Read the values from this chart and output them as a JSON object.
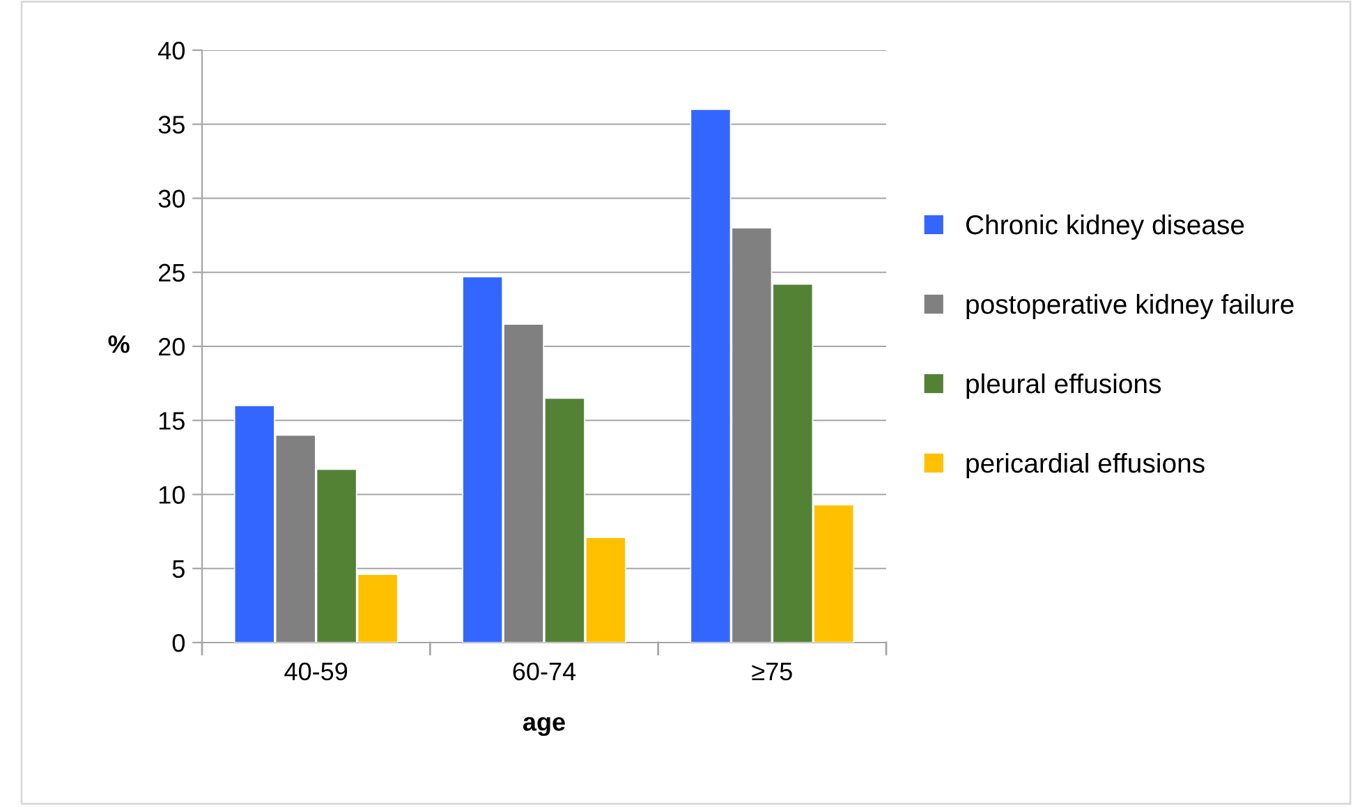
{
  "chart_data": {
    "type": "bar",
    "xlabel": "age",
    "ylabel": "%",
    "categories": [
      "40-59",
      "60-74",
      "≥75"
    ],
    "series": [
      {
        "name": "Chronic kidney disease",
        "color": "#3366ff",
        "values": [
          16.0,
          24.7,
          36.0
        ]
      },
      {
        "name": "postoperative kidney failure",
        "color": "#808080",
        "values": [
          14.0,
          21.5,
          28.0
        ]
      },
      {
        "name": "pleural effusions",
        "color": "#548235",
        "values": [
          11.7,
          16.5,
          24.2
        ]
      },
      {
        "name": "pericardial effusions",
        "color": "#ffc000",
        "values": [
          4.6,
          7.1,
          9.3
        ]
      }
    ],
    "ylim": [
      0,
      40
    ],
    "yticks": [
      0,
      5,
      10,
      15,
      20,
      25,
      30,
      35,
      40
    ],
    "grid": "y",
    "legend": "right"
  }
}
